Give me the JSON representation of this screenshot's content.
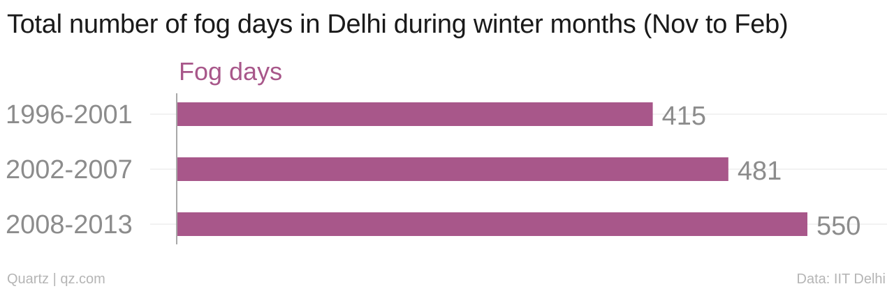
{
  "title": "Total number of fog days in Delhi during winter months (Nov to Feb)",
  "footer": {
    "source_left": "Quartz | qz.com",
    "source_right": "Data: IIT Delhi"
  },
  "colors": {
    "bar": "#a8578a",
    "series_label": "#a8578a",
    "axis_text": "#8c8c8c",
    "gridline": "#e6e6e6"
  },
  "chart_data": {
    "type": "bar",
    "orientation": "horizontal",
    "categories": [
      "1996-2001",
      "2002-2007",
      "2008-2013"
    ],
    "series": [
      {
        "name": "Fog days",
        "values": [
          415,
          481,
          550
        ]
      }
    ],
    "xlim": [
      0,
      550
    ],
    "grid": true,
    "legend": "top-left"
  }
}
